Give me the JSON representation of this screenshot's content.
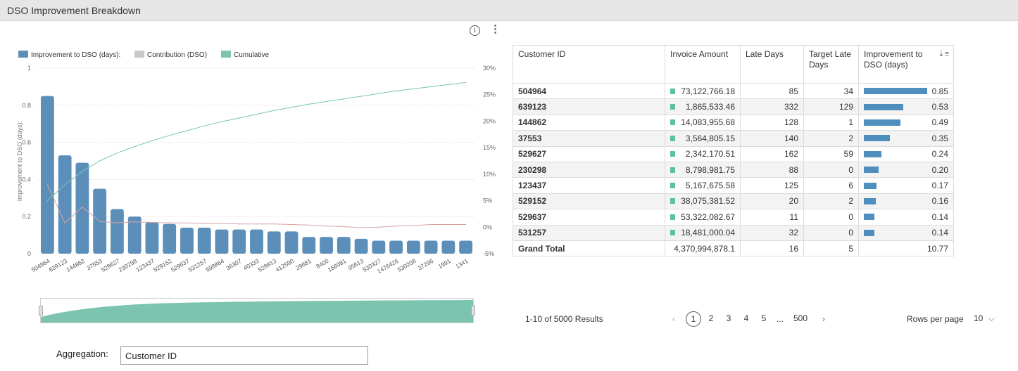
{
  "panel": {
    "title": "DSO Improvement Breakdown"
  },
  "toolbar": {
    "info_icon": "info-icon",
    "more_icon": "more-vertical-icon"
  },
  "chart_data": {
    "type": "bar",
    "title": "",
    "legend": {
      "placement": "top-left",
      "items": [
        {
          "label": "Improvement to DSO (days):",
          "color": "#5b8fba"
        },
        {
          "label": "Contribution (DSO)",
          "color": "#c8c8c8"
        },
        {
          "label": "Cumulative",
          "color": "#7cc4b0"
        }
      ]
    },
    "ylabel": "Improvement to DSO (days):",
    "ylim": [
      0,
      1
    ],
    "y_ticks": [
      "0",
      "0.2",
      "0.4",
      "0.6",
      "0.8",
      "1"
    ],
    "y2lim": [
      -5,
      30
    ],
    "y2_ticks": [
      "-5%",
      "0%",
      "5%",
      "10%",
      "15%",
      "20%",
      "25%",
      "30%"
    ],
    "grid": true,
    "categories": [
      "504964",
      "639123",
      "144862",
      "37553",
      "529627",
      "230298",
      "123437",
      "529152",
      "529637",
      "531257",
      "598864",
      "36307",
      "40333",
      "529813",
      "412590",
      "29681",
      "8400",
      "166081",
      "95613",
      "530327",
      "1476426",
      "530208",
      "37296",
      "1991",
      "1341"
    ],
    "series": [
      {
        "name": "Improvement to DSO (days):",
        "type": "bar",
        "color": "#5b8fba",
        "values": [
          0.85,
          0.53,
          0.49,
          0.35,
          0.24,
          0.2,
          0.17,
          0.16,
          0.14,
          0.14,
          0.13,
          0.13,
          0.13,
          0.12,
          0.12,
          0.09,
          0.09,
          0.09,
          0.08,
          0.07,
          0.07,
          0.07,
          0.07,
          0.07,
          0.07
        ]
      },
      {
        "name": "Contribution (DSO)",
        "type": "line",
        "color": "#d9a3a3",
        "values": [
          8.0,
          0.8,
          3.8,
          1.1,
          0.8,
          1.0,
          0.9,
          0.8,
          0.8,
          0.7,
          0.7,
          0.6,
          0.6,
          0.6,
          0.5,
          0.4,
          0.2,
          0.1,
          -0.1,
          0.0,
          0.2,
          0.3,
          0.5,
          0.5,
          0.5
        ]
      },
      {
        "name": "Cumulative",
        "type": "line",
        "color": "#7cc4b0",
        "values": [
          5.0,
          8.0,
          10.5,
          12.5,
          14.0,
          15.2,
          16.3,
          17.3,
          18.2,
          19.1,
          19.9,
          20.6,
          21.3,
          22.0,
          22.6,
          23.2,
          23.7,
          24.2,
          24.7,
          25.2,
          25.7,
          26.1,
          26.5,
          26.9,
          27.3
        ]
      }
    ]
  },
  "aggregation": {
    "label": "Aggregation:",
    "value": "Customer ID"
  },
  "table": {
    "columns": [
      {
        "label": "Customer ID"
      },
      {
        "label": "Invoice Amount"
      },
      {
        "label": "Late Days"
      },
      {
        "label": "Target Late Days"
      },
      {
        "label": "Improvement to DSO (days)"
      }
    ],
    "rows": [
      {
        "id": "504964",
        "invoice": "73,122,766.18",
        "late": "85",
        "target": "34",
        "improvement": "0.85",
        "improvement_value": 0.85
      },
      {
        "id": "639123",
        "invoice": "1,865,533.46",
        "late": "332",
        "target": "129",
        "improvement": "0.53",
        "improvement_value": 0.53
      },
      {
        "id": "144862",
        "invoice": "14,083,955.68",
        "late": "128",
        "target": "1",
        "improvement": "0.49",
        "improvement_value": 0.49
      },
      {
        "id": "37553",
        "invoice": "3,564,805.15",
        "late": "140",
        "target": "2",
        "improvement": "0.35",
        "improvement_value": 0.35
      },
      {
        "id": "529627",
        "invoice": "2,342,170.51",
        "late": "162",
        "target": "59",
        "improvement": "0.24",
        "improvement_value": 0.24
      },
      {
        "id": "230298",
        "invoice": "8,798,981.75",
        "late": "88",
        "target": "0",
        "improvement": "0.20",
        "improvement_value": 0.2
      },
      {
        "id": "123437",
        "invoice": "5,167,675.58",
        "late": "125",
        "target": "6",
        "improvement": "0.17",
        "improvement_value": 0.17
      },
      {
        "id": "529152",
        "invoice": "38,075,381.52",
        "late": "20",
        "target": "2",
        "improvement": "0.16",
        "improvement_value": 0.16
      },
      {
        "id": "529637",
        "invoice": "53,322,082.67",
        "late": "11",
        "target": "0",
        "improvement": "0.14",
        "improvement_value": 0.14
      },
      {
        "id": "531257",
        "invoice": "18,481,000.04",
        "late": "32",
        "target": "0",
        "improvement": "0.14",
        "improvement_value": 0.14
      }
    ],
    "total": {
      "label": "Grand Total",
      "invoice": "4,370,994,878.1",
      "late": "16",
      "target": "5",
      "improvement": "10.77"
    },
    "colors": {
      "marker": "#5cbfa6",
      "databar": "#4f8fbd"
    }
  },
  "pagination": {
    "results": "1-10 of 5000 Results",
    "prev": "‹",
    "pages": [
      "1",
      "2",
      "3",
      "4",
      "5"
    ],
    "ellipsis": "...",
    "last": "500",
    "next": "›",
    "rows_label": "Rows per page",
    "rows_value": "10",
    "rows_chevron": "chevron-down-icon"
  }
}
